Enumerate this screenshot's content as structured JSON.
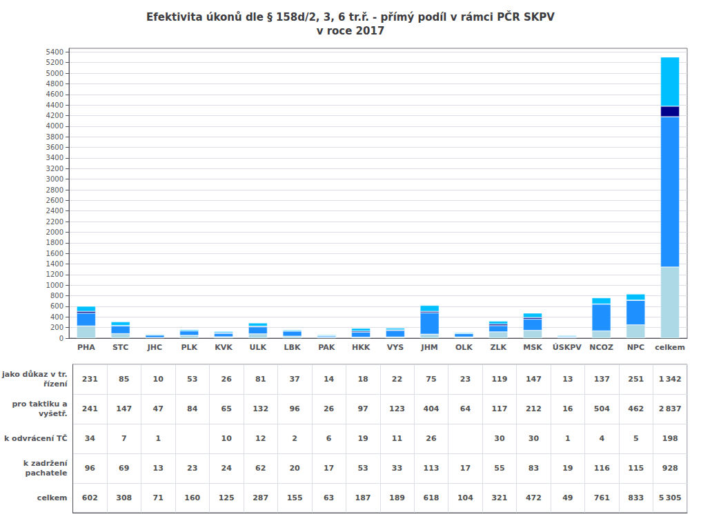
{
  "chart_data": {
    "type": "bar",
    "title": "Efektivita úkonů dle § 158d/2, 3, 6 tr.ř. - přímý podíl v rámci PČR SKPV\nv roce 2017",
    "stacked": true,
    "grid": true,
    "categories": [
      "PHA",
      "STC",
      "JHC",
      "PLK",
      "KVK",
      "ULK",
      "LBK",
      "PAK",
      "HKK",
      "VYS",
      "JHM",
      "OLK",
      "ZLK",
      "MSK",
      "ÚSKPV",
      "NCOZ",
      "NPC",
      "celkem"
    ],
    "ylim": [
      0,
      5470
    ],
    "yticks": [
      0,
      200,
      400,
      600,
      800,
      1000,
      1200,
      1400,
      1600,
      1800,
      2000,
      2200,
      2400,
      2600,
      2800,
      3000,
      3200,
      3400,
      3600,
      3800,
      4000,
      4200,
      4400,
      4600,
      4800,
      5000,
      5200,
      5400
    ],
    "series": [
      {
        "name": "jako důkaz v tr.\nřízení",
        "color": "#ADD8E6",
        "values": [
          231,
          85,
          10,
          53,
          26,
          81,
          37,
          14,
          18,
          22,
          75,
          23,
          119,
          147,
          13,
          137,
          251,
          1342
        ],
        "value_labels": [
          "231",
          "85",
          "10",
          "53",
          "26",
          "81",
          "37",
          "14",
          "18",
          "22",
          "75",
          "23",
          "119",
          "147",
          "13",
          "137",
          "251",
          "1 342"
        ]
      },
      {
        "name": "pro taktiku a\nvyšetř.",
        "color": "#1E90FF",
        "values": [
          241,
          147,
          47,
          84,
          65,
          132,
          96,
          26,
          97,
          123,
          404,
          64,
          117,
          212,
          16,
          504,
          462,
          2837
        ],
        "value_labels": [
          "241",
          "147",
          "47",
          "84",
          "65",
          "132",
          "96",
          "26",
          "97",
          "123",
          "404",
          "64",
          "117",
          "212",
          "16",
          "504",
          "462",
          "2 837"
        ]
      },
      {
        "name": "k odvrácení TČ",
        "color": "#00008B",
        "values": [
          34,
          7,
          1,
          0,
          10,
          12,
          2,
          6,
          19,
          11,
          26,
          0,
          30,
          30,
          1,
          4,
          5,
          198
        ],
        "value_labels": [
          "34",
          "7",
          "1",
          null,
          "10",
          "12",
          "2",
          "6",
          "19",
          "11",
          "26",
          null,
          "30",
          "30",
          "1",
          "4",
          "5",
          "198"
        ]
      },
      {
        "name": "k zadržení\npachatele",
        "color": "#00BFFF",
        "values": [
          96,
          69,
          13,
          23,
          24,
          62,
          20,
          17,
          53,
          33,
          113,
          17,
          55,
          83,
          19,
          116,
          115,
          928
        ],
        "value_labels": [
          "96",
          "69",
          "13",
          "23",
          "24",
          "62",
          "20",
          "17",
          "53",
          "33",
          "113",
          "17",
          "55",
          "83",
          "19",
          "116",
          "115",
          "928"
        ]
      }
    ],
    "totals": {
      "name": "celkem",
      "values": [
        602,
        308,
        71,
        160,
        125,
        287,
        155,
        63,
        187,
        189,
        618,
        104,
        321,
        472,
        49,
        761,
        833,
        5305
      ],
      "value_labels": [
        "602",
        "308",
        "71",
        "160",
        "125",
        "287",
        "155",
        "63",
        "187",
        "189",
        "618",
        "104",
        "321",
        "472",
        "49",
        "761",
        "833",
        "5 305"
      ]
    }
  }
}
